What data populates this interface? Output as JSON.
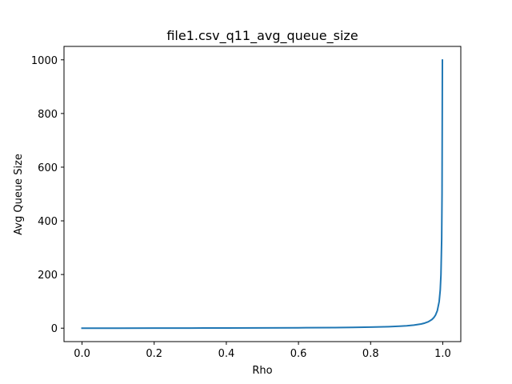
{
  "chart_data": {
    "type": "line",
    "title": "file1.csv_q11_avg_queue_size",
    "xlabel": "Rho",
    "ylabel": "Avg Queue Size",
    "xlim": [
      -0.05,
      1.05
    ],
    "ylim": [
      -50,
      1050
    ],
    "xticks": [
      0.0,
      0.2,
      0.4,
      0.6,
      0.8,
      1.0
    ],
    "xtick_labels": [
      "0.0",
      "0.2",
      "0.4",
      "0.6",
      "0.8",
      "1.0"
    ],
    "yticks": [
      0,
      200,
      400,
      600,
      800,
      1000
    ],
    "ytick_labels": [
      "0",
      "200",
      "400",
      "600",
      "800",
      "1000"
    ],
    "grid": false,
    "series": [
      {
        "color": "#1f77b4",
        "x": [
          0,
          0.1,
          0.2,
          0.3,
          0.4,
          0.5,
          0.6,
          0.7,
          0.75,
          0.8,
          0.85,
          0.88,
          0.9,
          0.92,
          0.94,
          0.95,
          0.96,
          0.97,
          0.975,
          0.98,
          0.985,
          0.99,
          0.993,
          0.995,
          0.997,
          0.998,
          0.999
        ],
        "y": [
          0,
          0.11,
          0.25,
          0.43,
          0.67,
          1.0,
          1.5,
          2.33,
          3.0,
          4.0,
          5.67,
          7.33,
          9.0,
          11.5,
          15.67,
          19.0,
          24.0,
          32.33,
          39.0,
          49.0,
          65.67,
          99.0,
          141.86,
          199.0,
          332.33,
          499.0,
          999.0
        ]
      }
    ]
  }
}
